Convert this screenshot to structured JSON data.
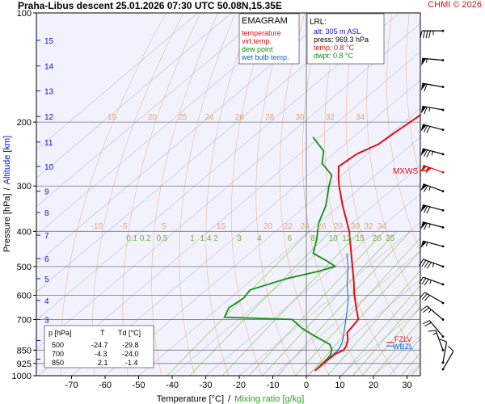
{
  "header": {
    "title": "Praha-Libus   descent   25.01.2026 07:30 UTC   50.08N,15.35E",
    "org": "CHMI © 2026"
  },
  "legend": {
    "title": "EMAGRAM",
    "items": [
      {
        "label": "temperature",
        "color": "#e01010"
      },
      {
        "label": "virt.temp.",
        "color": "#e01010"
      },
      {
        "label": "dew point",
        "color": "#109010"
      },
      {
        "label": "wet bulb temp.",
        "color": "#1060d0"
      }
    ]
  },
  "lrl": {
    "title": "LRL:",
    "rows": [
      {
        "text": "alt: 305 m ASL",
        "color": "#1010d0"
      },
      {
        "text": "press: 969.3 hPa",
        "color": "#000000"
      },
      {
        "text": "temp: 0.8 °C",
        "color": "#e01010"
      },
      {
        "text": "dwpt: 0.8 °C",
        "color": "#109010"
      }
    ]
  },
  "table": {
    "headers": [
      "p [hPa]",
      "T",
      "Td [°C]"
    ],
    "rows": [
      [
        "500",
        "-24.7",
        "-29.8"
      ],
      [
        "700",
        "-4.3",
        "-24.0"
      ],
      [
        "850",
        "2.1",
        "-1.4"
      ]
    ]
  },
  "markers": {
    "mxws": "MXWS",
    "fzl": "FZLV",
    "wbzl": "WBZL"
  },
  "chart_data": {
    "type": "line",
    "title": "EMAGRAM",
    "xlabel": "Temperature [°C]",
    "xlabel_sep": "/",
    "xlabel2": "Mixing ratio [g/kg]",
    "ylabel": "Pressure [hPa]",
    "ylabel_sep": "/",
    "ylabel2": "Altitude [km]",
    "x_ticks": [
      -70,
      -60,
      -50,
      -40,
      -30,
      -20,
      -10,
      0,
      10,
      20,
      30
    ],
    "y_ticks": [
      100,
      200,
      300,
      400,
      500,
      600,
      700,
      850,
      925,
      1000
    ],
    "altitude_ticks_km": [
      1,
      2,
      3,
      4,
      5,
      6,
      7,
      8,
      9,
      10,
      11,
      12,
      13,
      14,
      15
    ],
    "altitude_tick_pressures": [
      900,
      800,
      700,
      620,
      540,
      475,
      410,
      355,
      310,
      265,
      227,
      193,
      164,
      140,
      119
    ],
    "theta_labels_upper": [
      "15",
      "20",
      "25",
      "24",
      "26",
      "28",
      "30",
      "32",
      "34"
    ],
    "theta_labels_upper_t": [
      -76,
      -64,
      -55,
      -47,
      -38,
      -29,
      -20,
      -11,
      -2
    ],
    "theta_labels_mid": [
      "-10",
      "-5",
      "5",
      "15",
      "20",
      "22",
      "24",
      "26",
      "28",
      "30",
      "32",
      "34"
    ],
    "theta_labels_mid_t": [
      -68,
      -60,
      -48,
      -31,
      -17,
      -11,
      -6,
      -1,
      4,
      9,
      13,
      17
    ],
    "mixing_labels": [
      "0.1",
      "0.2",
      "0.5",
      "1",
      "1.4",
      "2",
      "3",
      "4",
      "6",
      "8",
      "10",
      "12",
      "15",
      "20",
      "25"
    ],
    "mixing_label_t": [
      -52,
      -48,
      -43,
      -34,
      -30,
      -27,
      -20,
      -14,
      -5,
      2,
      8,
      12,
      16,
      21,
      25
    ],
    "temperature": [
      {
        "p": 100,
        "t": -57
      },
      {
        "p": 120,
        "t": -57
      },
      {
        "p": 140,
        "t": -56.5
      },
      {
        "p": 160,
        "t": -57
      },
      {
        "p": 180,
        "t": -57
      },
      {
        "p": 195,
        "t": -58
      },
      {
        "p": 210,
        "t": -59
      },
      {
        "p": 230,
        "t": -60
      },
      {
        "p": 245,
        "t": -63
      },
      {
        "p": 265,
        "t": -64
      },
      {
        "p": 285,
        "t": -60
      },
      {
        "p": 300,
        "t": -57
      },
      {
        "p": 340,
        "t": -49
      },
      {
        "p": 400,
        "t": -38
      },
      {
        "p": 450,
        "t": -31
      },
      {
        "p": 500,
        "t": -24.7
      },
      {
        "p": 550,
        "t": -19
      },
      {
        "p": 600,
        "t": -14
      },
      {
        "p": 650,
        "t": -9
      },
      {
        "p": 700,
        "t": -4.3
      },
      {
        "p": 760,
        "t": -3
      },
      {
        "p": 800,
        "t": 0
      },
      {
        "p": 830,
        "t": 1.5
      },
      {
        "p": 850,
        "t": 2.1
      },
      {
        "p": 870,
        "t": 1
      },
      {
        "p": 900,
        "t": 0.8
      },
      {
        "p": 925,
        "t": 0.8
      },
      {
        "p": 969,
        "t": 0.8
      }
    ],
    "dewpoint": [
      {
        "p": 220,
        "t": -82
      },
      {
        "p": 240,
        "t": -74
      },
      {
        "p": 260,
        "t": -70
      },
      {
        "p": 280,
        "t": -63
      },
      {
        "p": 300,
        "t": -60
      },
      {
        "p": 340,
        "t": -54
      },
      {
        "p": 380,
        "t": -50
      },
      {
        "p": 420,
        "t": -45
      },
      {
        "p": 460,
        "t": -41
      },
      {
        "p": 480,
        "t": -35
      },
      {
        "p": 500,
        "t": -29.8
      },
      {
        "p": 515,
        "t": -33
      },
      {
        "p": 540,
        "t": -40
      },
      {
        "p": 580,
        "t": -47
      },
      {
        "p": 610,
        "t": -46
      },
      {
        "p": 650,
        "t": -47
      },
      {
        "p": 690,
        "t": -45
      },
      {
        "p": 700,
        "t": -24
      },
      {
        "p": 740,
        "t": -18
      },
      {
        "p": 780,
        "t": -11
      },
      {
        "p": 820,
        "t": -4
      },
      {
        "p": 850,
        "t": -1.4
      },
      {
        "p": 880,
        "t": 0
      },
      {
        "p": 925,
        "t": 0.6
      },
      {
        "p": 969,
        "t": 0.8
      }
    ],
    "wetbulb": [
      {
        "p": 460,
        "t": -31
      },
      {
        "p": 500,
        "t": -26
      },
      {
        "p": 560,
        "t": -20
      },
      {
        "p": 620,
        "t": -14
      },
      {
        "p": 700,
        "t": -8
      },
      {
        "p": 760,
        "t": -4
      },
      {
        "p": 810,
        "t": -1
      },
      {
        "p": 850,
        "t": 0.5
      },
      {
        "p": 900,
        "t": 0.6
      },
      {
        "p": 969,
        "t": 0.8
      }
    ],
    "wind_barbs": [
      {
        "p": 112,
        "dir": 270,
        "speed": 45
      },
      {
        "p": 135,
        "dir": 275,
        "speed": 55
      },
      {
        "p": 160,
        "dir": 280,
        "speed": 60
      },
      {
        "p": 185,
        "dir": 280,
        "speed": 65
      },
      {
        "p": 210,
        "dir": 285,
        "speed": 70
      },
      {
        "p": 245,
        "dir": 285,
        "speed": 75
      },
      {
        "p": 275,
        "dir": 290,
        "speed": 100
      },
      {
        "p": 310,
        "dir": 290,
        "speed": 65
      },
      {
        "p": 350,
        "dir": 285,
        "speed": 70
      },
      {
        "p": 390,
        "dir": 285,
        "speed": 65
      },
      {
        "p": 440,
        "dir": 285,
        "speed": 55
      },
      {
        "p": 500,
        "dir": 290,
        "speed": 45
      },
      {
        "p": 560,
        "dir": 290,
        "speed": 35
      },
      {
        "p": 630,
        "dir": 300,
        "speed": 30
      },
      {
        "p": 700,
        "dir": 310,
        "speed": 25
      },
      {
        "p": 780,
        "dir": 320,
        "speed": 20
      },
      {
        "p": 850,
        "dir": 340,
        "speed": 15
      },
      {
        "p": 920,
        "dir": 10,
        "speed": 10
      },
      {
        "p": 960,
        "dir": 30,
        "speed": 10
      }
    ],
    "mxws_pressure": 275,
    "fzl_pressure": 810,
    "wbzl_pressure": 828
  }
}
